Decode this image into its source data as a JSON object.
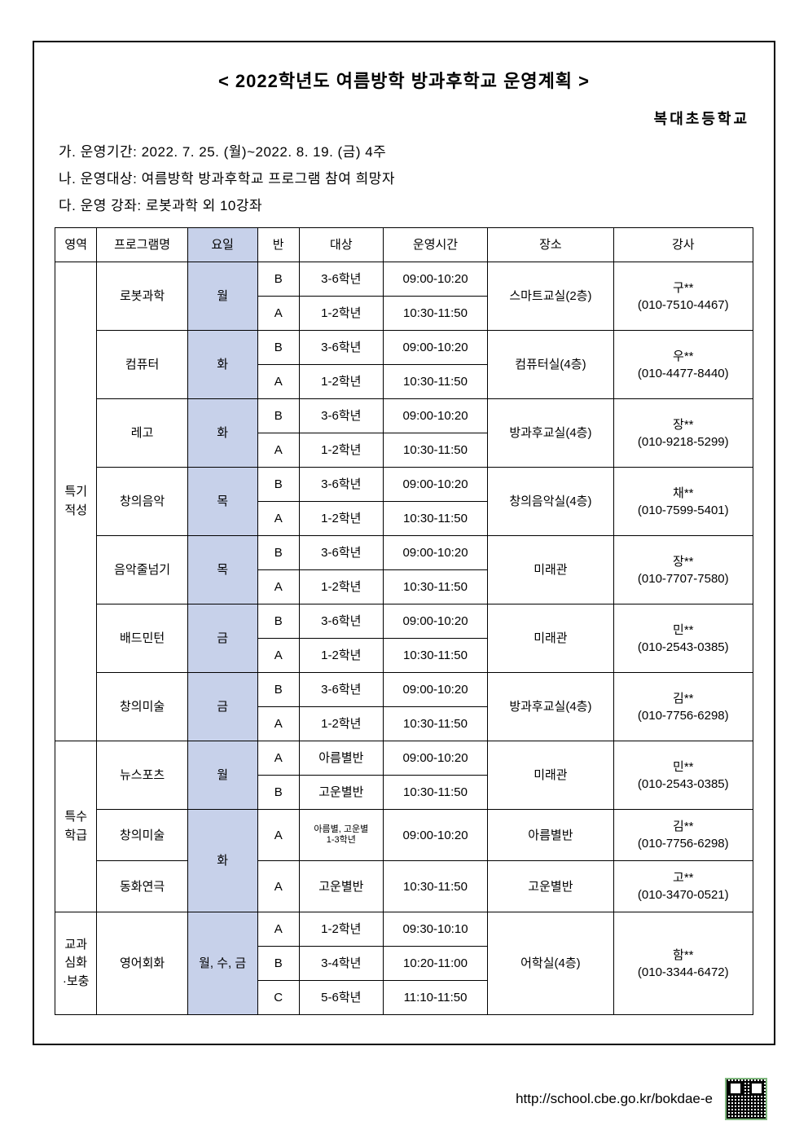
{
  "title": "< 2022학년도 여름방학 방과후학교 운영계획 >",
  "school": "복대초등학교",
  "info": {
    "period": "가. 운영기간: 2022. 7. 25. (월)~2022. 8. 19. (금) 4주",
    "target": "나. 운영대상: 여름방학 방과후학교 프로그램 참여 희망자",
    "courses": "다. 운영 강좌: 로봇과학 외 10강좌"
  },
  "headers": {
    "area": "영역",
    "program": "프로그램명",
    "day": "요일",
    "class": "반",
    "target": "대상",
    "time": "운영시간",
    "place": "장소",
    "teacher": "강사"
  },
  "area1": "특기\n적성",
  "area2": "특수\n학급",
  "area3": "교과\n심화\n·보충",
  "p1": {
    "name": "로봇과학",
    "day": "월",
    "cB": "B",
    "tB": "3-6학년",
    "timeB": "09:00-10:20",
    "cA": "A",
    "tA": "1-2학년",
    "timeA": "10:30-11:50",
    "place": "스마트교실(2층)",
    "teacher": "구**\n(010-7510-4467)"
  },
  "p2": {
    "name": "컴퓨터",
    "day": "화",
    "cB": "B",
    "tB": "3-6학년",
    "timeB": "09:00-10:20",
    "cA": "A",
    "tA": "1-2학년",
    "timeA": "10:30-11:50",
    "place": "컴퓨터실(4층)",
    "teacher": "우**\n(010-4477-8440)"
  },
  "p3": {
    "name": "레고",
    "day": "화",
    "cB": "B",
    "tB": "3-6학년",
    "timeB": "09:00-10:20",
    "cA": "A",
    "tA": "1-2학년",
    "timeA": "10:30-11:50",
    "place": "방과후교실(4층)",
    "teacher": "장**\n(010-9218-5299)"
  },
  "p4": {
    "name": "창의음악",
    "day": "목",
    "cB": "B",
    "tB": "3-6학년",
    "timeB": "09:00-10:20",
    "cA": "A",
    "tA": "1-2학년",
    "timeA": "10:30-11:50",
    "place": "창의음악실(4층)",
    "teacher": "채**\n(010-7599-5401)"
  },
  "p5": {
    "name": "음악줄넘기",
    "day": "목",
    "cB": "B",
    "tB": "3-6학년",
    "timeB": "09:00-10:20",
    "cA": "A",
    "tA": "1-2학년",
    "timeA": "10:30-11:50",
    "place": "미래관",
    "teacher": "장**\n(010-7707-7580)"
  },
  "p6": {
    "name": "배드민턴",
    "day": "금",
    "cB": "B",
    "tB": "3-6학년",
    "timeB": "09:00-10:20",
    "cA": "A",
    "tA": "1-2학년",
    "timeA": "10:30-11:50",
    "place": "미래관",
    "teacher": "민**\n(010-2543-0385)"
  },
  "p7": {
    "name": "창의미술",
    "day": "금",
    "cB": "B",
    "tB": "3-6학년",
    "timeB": "09:00-10:20",
    "cA": "A",
    "tA": "1-2학년",
    "timeA": "10:30-11:50",
    "place": "방과후교실(4층)",
    "teacher": "김**\n(010-7756-6298)"
  },
  "p8": {
    "name": "뉴스포츠",
    "day": "월",
    "cA": "A",
    "tA": "아름별반",
    "timeA": "09:00-10:20",
    "cB": "B",
    "tB": "고운별반",
    "timeB": "10:30-11:50",
    "place": "미래관",
    "teacher": "민**\n(010-2543-0385)"
  },
  "p9": {
    "name": "창의미술",
    "day": "화",
    "cA": "A",
    "tA": "아름별, 고운별\n1-3학년",
    "timeA": "09:00-10:20",
    "place": "아름별반",
    "teacher": "김**\n(010-7756-6298)"
  },
  "p10": {
    "name": "동화연극",
    "cA": "A",
    "tA": "고운별반",
    "timeA": "10:30-11:50",
    "place": "고운별반",
    "teacher": "고**\n(010-3470-0521)"
  },
  "p11": {
    "name": "영어회화",
    "day": "월, 수, 금",
    "cA": "A",
    "tA": "1-2학년",
    "timeA": "09:30-10:10",
    "cB": "B",
    "tB": "3-4학년",
    "timeB": "10:20-11:00",
    "cC": "C",
    "tC": "5-6학년",
    "timeC": "11:10-11:50",
    "place": "어학실(4층)",
    "teacher": "함**\n(010-3344-6472)"
  },
  "footer_url": "http://school.cbe.go.kr/bokdae-e",
  "colors": {
    "day_bg": "#c7d1ea"
  }
}
